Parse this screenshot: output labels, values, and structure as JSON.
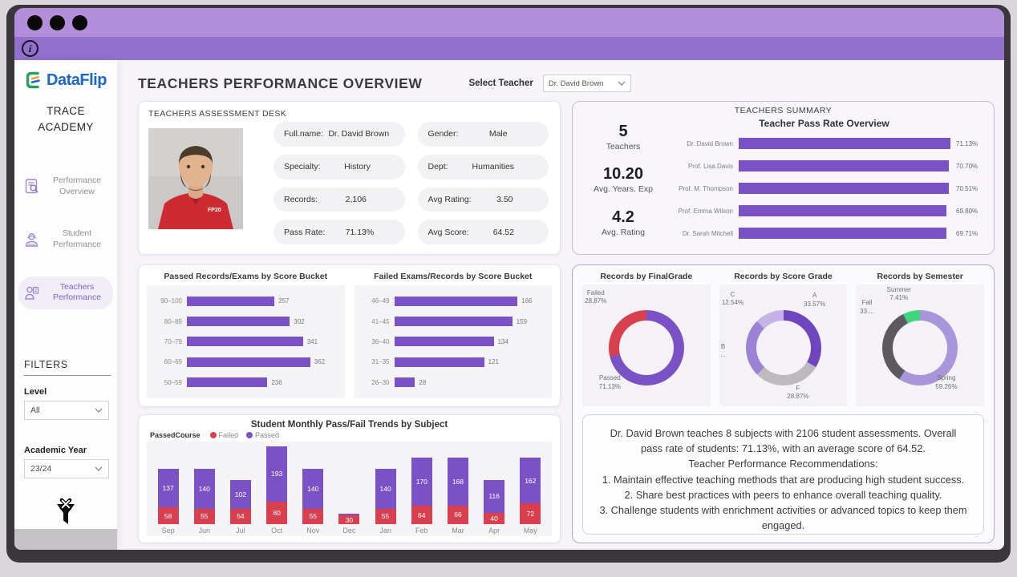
{
  "colors": {
    "accent_purple": "#7a52c5",
    "fail_red": "#d8404f",
    "titlebar_light": "#b48fd9",
    "titlebar_dark": "#9170cf",
    "logo_blue": "#1b67c1",
    "logo_green": "#2aa05c",
    "logo_orange": "#f2a43a",
    "summer_green": "#41d47f"
  },
  "sidebar": {
    "logo_text": "DataFlip",
    "academy_name": "TRACE\nACADEMY",
    "nav": [
      {
        "label": "Performance\nOverview",
        "icon": "report-icon",
        "active": false
      },
      {
        "label": "Student\nPerformance",
        "icon": "student-icon",
        "active": false
      },
      {
        "label": "Teachers\nPerformance",
        "icon": "teacher-icon",
        "active": true
      }
    ],
    "filters": {
      "heading": "FILTERS",
      "level_label": "Level",
      "level_value": "All",
      "year_label": "Academic Year",
      "year_value": "23/24"
    }
  },
  "header": {
    "title": "TEACHERS PERFORMANCE OVERVIEW",
    "select_teacher_label": "Select Teacher",
    "selected_teacher": "Dr. David Brown"
  },
  "assessment": {
    "title": "TEACHERS ASSESSMENT DESK",
    "fields": [
      {
        "label": "Full.name:",
        "value": "Dr. David Brown"
      },
      {
        "label": "Gender:",
        "value": "Male"
      },
      {
        "label": "Specialty:",
        "value": "History"
      },
      {
        "label": "Dept:",
        "value": "Humanities"
      },
      {
        "label": "Records:",
        "value": "2,106"
      },
      {
        "label": "Avg Rating:",
        "value": "3.50"
      },
      {
        "label": "Pass Rate:",
        "value": "71.13%"
      },
      {
        "label": "Avg Score:",
        "value": "64.52"
      }
    ]
  },
  "summary": {
    "title": "TEACHERS SUMMARY",
    "kpis": [
      {
        "value": "5",
        "label": "Teachers"
      },
      {
        "value": "10.20",
        "label": "Avg. Years. Exp"
      },
      {
        "value": "4.2",
        "label": "Avg. Rating"
      }
    ]
  },
  "chart_data": [
    {
      "id": "teacher_pass_rate",
      "type": "bar",
      "orientation": "horizontal",
      "title": "Teacher Pass Rate Overview",
      "categories": [
        "Dr. David Brown",
        "Prof. Lisa Davis",
        "Prof. M. Thompson",
        "Prof. Emma Wilson",
        "Dr. Sarah Mitchell"
      ],
      "values": [
        71.13,
        70.7,
        70.51,
        69.8,
        69.71
      ],
      "value_labels": [
        "71.13%",
        "70.70%",
        "70.51%",
        "69.80%",
        "69.71%"
      ],
      "xlim": [
        0,
        71.13
      ],
      "bar_color": "#7a52c5"
    },
    {
      "id": "passed_by_bucket",
      "type": "bar",
      "orientation": "horizontal",
      "title": "Passed Records/Exams by Score Bucket",
      "categories": [
        "90–100",
        "80–89",
        "70–79",
        "60–69",
        "50–59"
      ],
      "values": [
        257,
        302,
        341,
        362,
        236
      ],
      "bar_color": "#7a52c5"
    },
    {
      "id": "failed_by_bucket",
      "type": "bar",
      "orientation": "horizontal",
      "title": "Failed Exams/Records by Score Bucket",
      "categories": [
        "46–49",
        "41–45",
        "36–40",
        "31–35",
        "26–30"
      ],
      "values": [
        166,
        159,
        134,
        121,
        28
      ],
      "bar_color": "#7a52c5"
    },
    {
      "id": "monthly_trends",
      "type": "bar",
      "stacked": true,
      "title": "Student Monthly Pass/Fail Trends by Subject",
      "legend_title": "PassedCourse",
      "legend": [
        {
          "label": "Failed",
          "color": "#d8404f"
        },
        {
          "label": "Passed",
          "color": "#7a52c5"
        }
      ],
      "months": [
        {
          "m": "Sep",
          "f": 58,
          "p": 137
        },
        {
          "m": "Jun",
          "f": 55,
          "p": 140
        },
        {
          "m": "Jul",
          "f": 54,
          "p": 102
        },
        {
          "m": "Oct",
          "f": 80,
          "p": 193
        },
        {
          "m": "Nov",
          "f": 55,
          "p": 140
        },
        {
          "m": "Dec",
          "f": 30,
          "p": 8,
          "p_label_hidden": true
        },
        {
          "m": "Jan",
          "f": 55,
          "p": 140
        },
        {
          "m": "Feb",
          "f": 64,
          "p": 170
        },
        {
          "m": "Mar",
          "f": 66,
          "p": 168
        },
        {
          "m": "Apr",
          "f": 40,
          "p": 116
        },
        {
          "m": "May",
          "f": 72,
          "p": 162
        }
      ]
    },
    {
      "id": "records_by_finalgrade",
      "type": "pie",
      "title": "Records by FinalGrade",
      "slices": [
        {
          "label": "Passed",
          "pct": 71.13,
          "pct_text": "71.13%",
          "color": "#7a52c5",
          "pos": [
            13,
            74
          ]
        },
        {
          "label": "Failed",
          "pct": 28.87,
          "pct_text": "28.87%",
          "color": "#d8404f",
          "pos": [
            2,
            4
          ]
        }
      ]
    },
    {
      "id": "records_by_scoregrade",
      "type": "pie",
      "title": "Records by Score Grade",
      "slices": [
        {
          "label": "A",
          "pct": 33.57,
          "pct_text": "33.57%",
          "color": "#6f46bd",
          "pos": [
            66,
            6
          ]
        },
        {
          "label": "F",
          "pct": 28.87,
          "pct_text": "28.87%",
          "color": "#bcb9bf",
          "pos": [
            53,
            82
          ]
        },
        {
          "label": "B",
          "pct": 25.02,
          "pct_text": "...",
          "color": "#9b82d4",
          "pos": [
            1,
            48
          ]
        },
        {
          "label": "C",
          "pct": 12.54,
          "pct_text": "12.54%",
          "color": "#c5b3e6",
          "pos": [
            2,
            5
          ]
        }
      ]
    },
    {
      "id": "records_by_semester",
      "type": "pie",
      "title": "Records by Semester",
      "slices": [
        {
          "label": "Spring",
          "pct": 59.26,
          "pct_text": "59.26%",
          "color": "#a995da",
          "pos": [
            62,
            74
          ]
        },
        {
          "label": "Fall",
          "pct": 33.33,
          "pct_text": "33....",
          "color": "#5d5961",
          "pos": [
            3,
            12
          ]
        },
        {
          "label": "Summer",
          "pct": 7.41,
          "pct_text": "7.41%",
          "color": "#41d47f",
          "pos": [
            24,
            1
          ]
        }
      ]
    }
  ],
  "recommendation": {
    "lines": [
      "Dr. David Brown teaches 8 subjects with 2106 student assessments. Overall pass rate of students: 71.13%, with an average score of 64.52.",
      "Teacher Performance Recommendations:",
      "1. Maintain effective teaching methods that are producing high student success.",
      "2. Share best practices with peers to enhance overall teaching quality.",
      "3. Challenge students with enrichment activities or advanced topics to keep them engaged."
    ]
  }
}
